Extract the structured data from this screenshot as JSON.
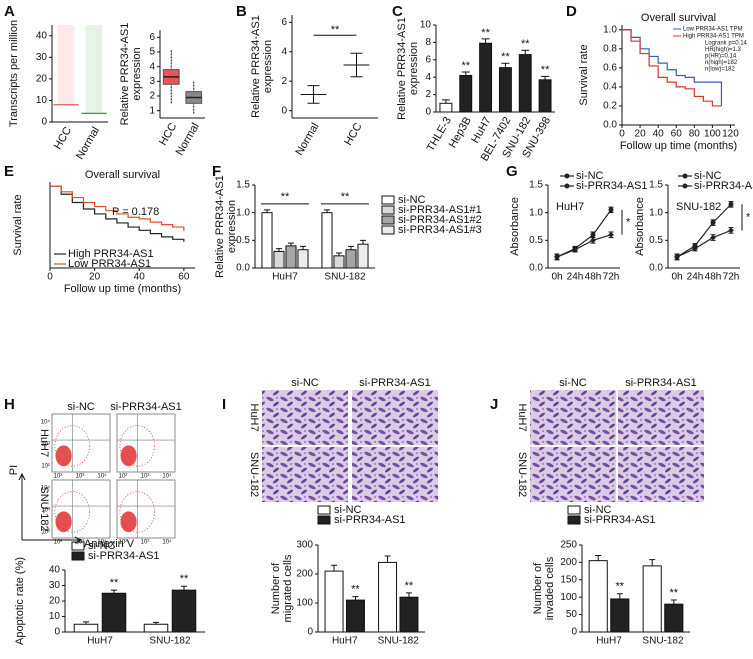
{
  "chart_data": [
    {
      "panel": "A",
      "type": "jitter",
      "ylabel": "Transcripts per million",
      "categories": [
        "HCC",
        "Normal"
      ],
      "values": [
        8,
        4
      ],
      "colors": [
        "#e8545a",
        "#3a9a3a"
      ],
      "ylim": [
        0,
        45
      ],
      "yticks": [
        0,
        10,
        20,
        30,
        40
      ]
    },
    {
      "type": "box",
      "ylabel": [
        "Relative PRR34-AS1",
        "expression"
      ],
      "categories": [
        "HCC",
        "Normal"
      ],
      "min": [
        1.5,
        0.8
      ],
      "q1": [
        2.8,
        1.5
      ],
      "median": [
        3.3,
        1.9
      ],
      "q3": [
        3.8,
        2.3
      ],
      "max": [
        5.2,
        3.0
      ],
      "colors": [
        "#e8545a",
        "#888888"
      ],
      "ylim": [
        0.5,
        6.5
      ],
      "yticks": [
        1,
        2,
        3,
        4,
        5,
        6
      ]
    },
    {
      "panel": "B",
      "type": "dot",
      "ylabel": [
        "Relative PRR34-AS1",
        "expression"
      ],
      "categories": [
        "Normal",
        "HCC"
      ],
      "values": [
        1.1,
        3.1
      ],
      "errors": [
        0.6,
        0.8
      ],
      "annotation": "**",
      "ylim": [
        -0.5,
        6.5
      ],
      "yticks": [
        0,
        2,
        4,
        6
      ]
    },
    {
      "panel": "C",
      "type": "bar",
      "ylabel": [
        "Relative PRR34-AS1",
        "expression"
      ],
      "categories": [
        "THLE-3",
        "Hep3B",
        "HuH7",
        "BEL-7402",
        "SNU-182",
        "SNU-398"
      ],
      "values": [
        1,
        4.2,
        7.9,
        5.1,
        6.6,
        3.7
      ],
      "errors": [
        0.4,
        0.4,
        0.5,
        0.5,
        0.5,
        0.4
      ],
      "sig": [
        null,
        "**",
        "**",
        "**",
        "**",
        "**"
      ],
      "colors": [
        "#ffffff",
        "#222222",
        "#222222",
        "#222222",
        "#222222",
        "#222222"
      ],
      "ylim": [
        0,
        10
      ],
      "yticks": [
        0,
        2,
        4,
        6,
        8,
        10
      ]
    },
    {
      "panel": "D",
      "type": "km",
      "title": "Overall survival",
      "ylabel": "Survival rate",
      "xlabel": "Follow up time (months)",
      "x": [
        0,
        10,
        20,
        30,
        40,
        50,
        60,
        70,
        80,
        90,
        100,
        110
      ],
      "series": [
        {
          "name": "Low PRR34-AS1 TPM",
          "color": "#3060c0",
          "values": [
            1,
            0.92,
            0.8,
            0.72,
            0.65,
            0.58,
            0.52,
            0.5,
            0.45,
            0.45,
            0.45,
            0.2
          ]
        },
        {
          "name": "High PRR34-AS1 TPM",
          "color": "#e0302a",
          "values": [
            1,
            0.88,
            0.75,
            0.62,
            0.5,
            0.45,
            0.4,
            0.38,
            0.3,
            0.25,
            0.2,
            0.2
          ]
        }
      ],
      "stats": [
        "Logrank p=0.14",
        "HR(high)=1.3",
        "p(HR)=0.14",
        "n(high)=182",
        "n(low)=182"
      ],
      "xlim": [
        0,
        125
      ],
      "ylim": [
        0,
        1.05
      ],
      "xticks": [
        0,
        20,
        40,
        60,
        80,
        100,
        120
      ],
      "yticks": [
        {
          "value": 0,
          "label": "0.0"
        },
        0.2,
        0.4,
        0.6,
        0.8,
        {
          "value": 1,
          "label": "1.0"
        }
      ]
    },
    {
      "panel": "E",
      "type": "km",
      "title": "Overall survival",
      "annotation": "P = 0.178",
      "ylabel": "Survival rate",
      "xlabel": "Follow up time (months)",
      "x": [
        0,
        5,
        10,
        15,
        20,
        25,
        30,
        35,
        40,
        45,
        50,
        55,
        60
      ],
      "series": [
        {
          "name": "High PRR34-AS1",
          "color": "#222222",
          "values": [
            1,
            0.9,
            0.8,
            0.72,
            0.66,
            0.6,
            0.55,
            0.5,
            0.46,
            0.42,
            0.38,
            0.35,
            0.32
          ]
        },
        {
          "name": "Low PRR34-AS1",
          "color": "#e0502a",
          "values": [
            1,
            0.93,
            0.86,
            0.8,
            0.75,
            0.7,
            0.66,
            0.62,
            0.6,
            0.56,
            0.53,
            0.5,
            0.45
          ]
        }
      ],
      "xlim": [
        0,
        65
      ],
      "ylim": [
        0,
        1.05
      ],
      "xticks": [
        0,
        20,
        40,
        60
      ]
    },
    {
      "panel": "F",
      "type": "grouped",
      "ylabel": [
        "Relative PRR34-AS1",
        "expression"
      ],
      "categories": [
        "HuH7",
        "SNU-182"
      ],
      "series": [
        {
          "name": "si-NC",
          "color": "#ffffff",
          "values": [
            1,
            1
          ],
          "errors": [
            0.05,
            0.05
          ]
        },
        {
          "name": "si-PRR34-AS1#1",
          "color": "#d9d9d9",
          "values": [
            0.3,
            0.22
          ],
          "errors": [
            0.05,
            0.05
          ]
        },
        {
          "name": "si-PRR34-AS1#2",
          "color": "#a6a6a6",
          "values": [
            0.4,
            0.33
          ],
          "errors": [
            0.05,
            0.06
          ]
        },
        {
          "name": "si-PRR34-AS1#3",
          "color": "#ececec",
          "values": [
            0.33,
            0.43
          ],
          "errors": [
            0.06,
            0.07
          ]
        }
      ],
      "sig": [
        "**",
        "**"
      ],
      "ylim": [
        0,
        1.5
      ],
      "yticks": [
        {
          "value": 0,
          "label": "0.0"
        },
        0.5,
        {
          "value": 1,
          "label": "1.0"
        },
        1.5
      ]
    },
    {
      "panel": "G",
      "type": "line",
      "ylabel": "Absorbance",
      "inner_label": "HuH7",
      "categories": [
        "0h",
        "24h",
        "48h",
        "72h"
      ],
      "series": [
        {
          "name": "si-NC",
          "color": "#222222",
          "values": [
            0.2,
            0.35,
            0.6,
            1.05
          ],
          "errors": [
            0.05,
            0.04,
            0.05,
            0.05
          ]
        },
        {
          "name": "si-PRR34-AS1",
          "color": "#222222",
          "values": [
            0.2,
            0.33,
            0.5,
            0.6
          ],
          "errors": [
            0.05,
            0.04,
            0.05,
            0.05
          ]
        }
      ],
      "annotation": "*",
      "ylim": [
        0,
        1.5
      ],
      "yticks": [
        {
          "value": 0,
          "label": "0.0"
        },
        0.5,
        {
          "value": 1,
          "label": "1.0"
        },
        1.5
      ]
    },
    {
      "type": "line",
      "ylabel": "Absorbance",
      "inner_label": "SNU-182",
      "categories": [
        "0h",
        "24h",
        "48h",
        "72h"
      ],
      "series": [
        {
          "name": "si-NC",
          "color": "#222222",
          "values": [
            0.2,
            0.4,
            0.82,
            1.15
          ],
          "errors": [
            0.05,
            0.04,
            0.05,
            0.05
          ]
        },
        {
          "name": "si-PRR34-AS1",
          "color": "#222222",
          "values": [
            0.2,
            0.35,
            0.55,
            0.68
          ],
          "errors": [
            0.05,
            0.04,
            0.05,
            0.05
          ]
        }
      ],
      "annotation": "*",
      "ylim": [
        0,
        1.5
      ],
      "yticks": [
        {
          "value": 0,
          "label": "0.0"
        },
        0.5,
        {
          "value": 1,
          "label": "1.0"
        },
        1.5
      ]
    },
    {
      "type": "grouped",
      "ylabel": "Apoptotic rate (%)",
      "categories": [
        "HuH7",
        "SNU-182"
      ],
      "series": [
        {
          "name": "si-NC",
          "color": "#ffffff",
          "values": [
            5,
            5
          ],
          "errors": [
            1.5,
            1.2
          ]
        },
        {
          "name": "si-PRR34-AS1",
          "color": "#222222",
          "values": [
            25,
            27
          ],
          "errors": [
            2,
            2.5
          ],
          "sig": [
            "**",
            "**"
          ]
        }
      ],
      "ylim": [
        0,
        40
      ],
      "yticks": [
        0,
        10,
        20,
        30,
        40
      ]
    },
    {
      "type": "grouped",
      "ylabel": [
        "Number of",
        "migrated cells"
      ],
      "categories": [
        "HuH7",
        "SNU-182"
      ],
      "series": [
        {
          "name": "si-NC",
          "color": "#ffffff",
          "values": [
            210,
            240
          ],
          "errors": [
            20,
            22
          ]
        },
        {
          "name": "si-PRR34-AS1",
          "color": "#222222",
          "values": [
            110,
            120
          ],
          "errors": [
            12,
            15
          ],
          "sig": [
            "**",
            "**"
          ]
        }
      ],
      "ylim": [
        0,
        300
      ],
      "yticks": [
        0,
        100,
        200,
        300
      ]
    },
    {
      "type": "grouped",
      "ylabel": [
        "Number of",
        "invaded cells"
      ],
      "categories": [
        "HuH7",
        "SNU-182"
      ],
      "series": [
        {
          "name": "si-NC",
          "color": "#ffffff",
          "values": [
            205,
            190
          ],
          "errors": [
            15,
            18
          ]
        },
        {
          "name": "si-PRR34-AS1",
          "color": "#222222",
          "values": [
            95,
            80
          ],
          "errors": [
            15,
            12
          ],
          "sig": [
            "**",
            "**"
          ]
        }
      ],
      "ylim": [
        0,
        250
      ],
      "yticks": [
        0,
        50,
        100,
        150,
        200,
        250
      ]
    }
  ],
  "image_panels": [
    {
      "panel": "H",
      "kind": "flow",
      "columns": [
        "si-NC",
        "si-PRR34-AS1"
      ],
      "rows": [
        "HuH7",
        "SNU-182"
      ],
      "y_axis": "PI",
      "x_axis": "Annexin V",
      "ticks": [
        "10²",
        "10³",
        "10⁴"
      ]
    },
    {
      "panel": "I",
      "kind": "stain",
      "columns": [
        "si-NC",
        "si-PRR34-AS1"
      ],
      "rows": [
        "HuH7",
        "SNU-182"
      ]
    },
    {
      "panel": "J",
      "kind": "stain",
      "columns": [
        "si-NC",
        "si-PRR34-AS1"
      ],
      "rows": [
        "HuH7",
        "SNU-182"
      ]
    }
  ]
}
